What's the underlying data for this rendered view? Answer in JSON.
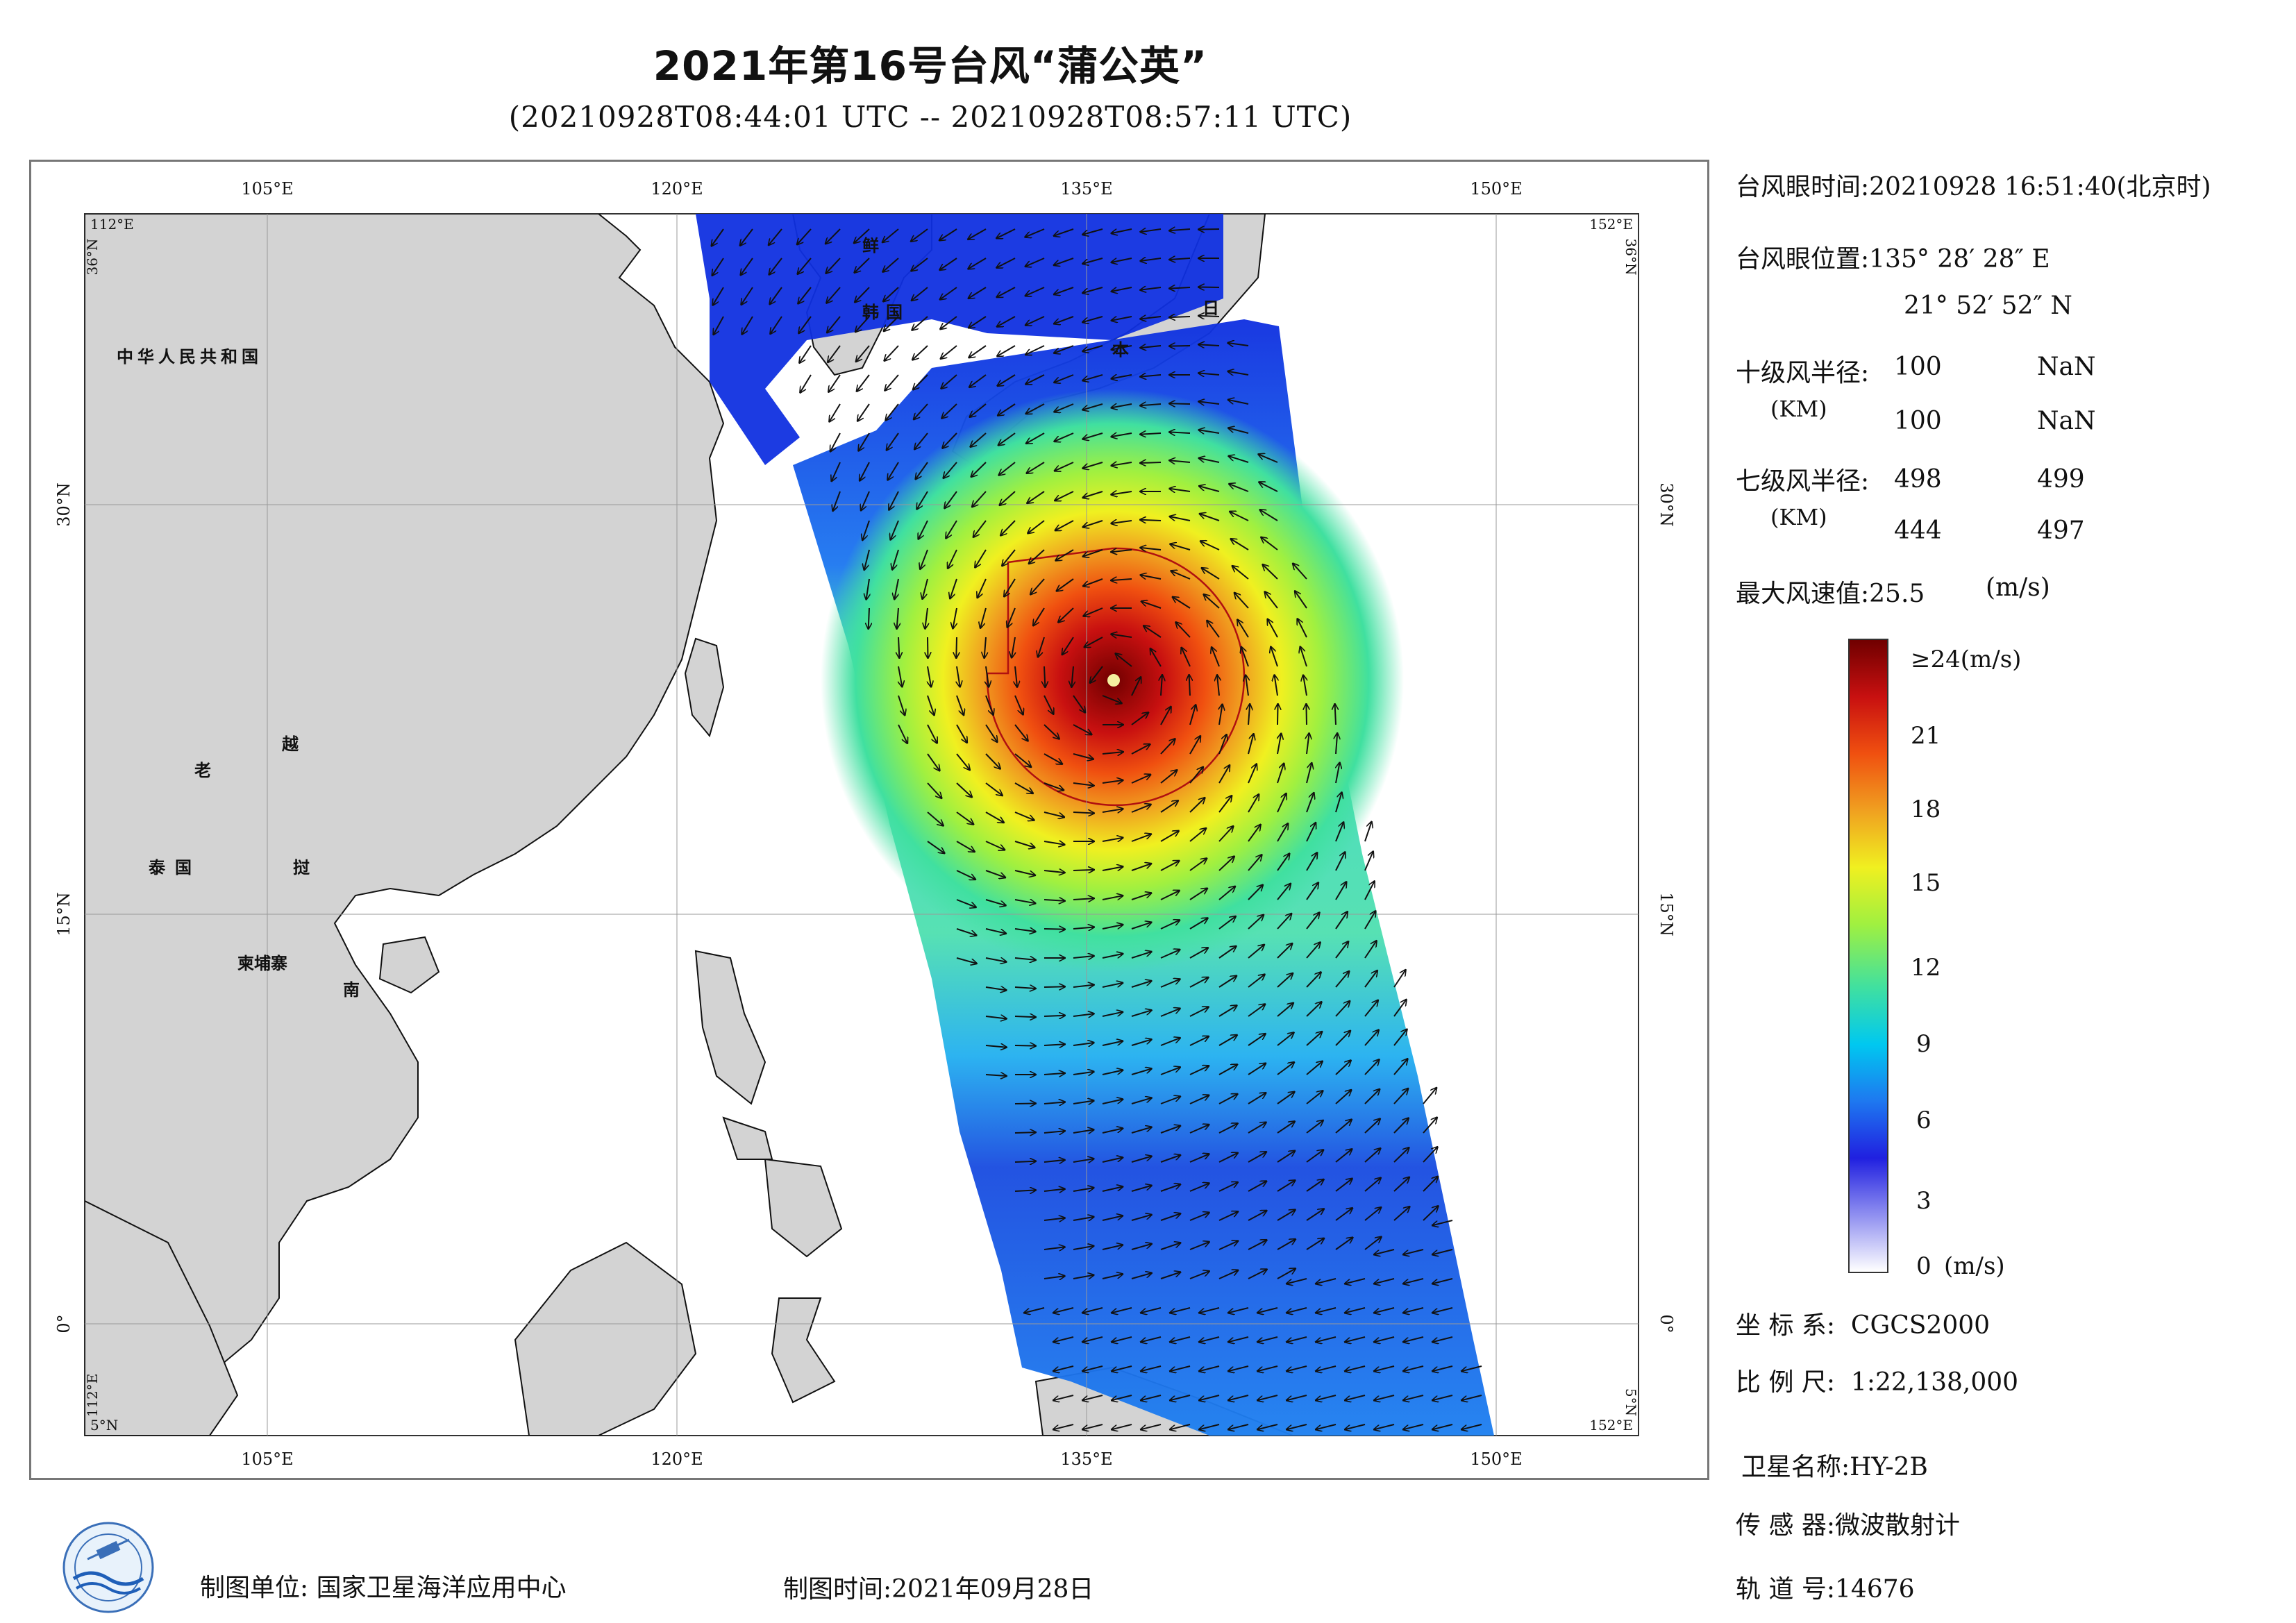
{
  "title": "2021年第16号台风“蒲公英”",
  "subtitle": "(20210928T08:44:01 UTC -- 20210928T08:57:11 UTC)",
  "map": {
    "lon_ticks": [
      "105°E",
      "120°E",
      "135°E",
      "150°E"
    ],
    "lat_ticks": [
      "30°N",
      "15°N",
      "0°"
    ],
    "corners": {
      "top_left_lon": "112°E",
      "top_left_lat": "36°N",
      "top_right_lon": "152°E",
      "top_right_lat": "36°N",
      "bottom_left_lon": "112°E",
      "bottom_left_lat": "5°N",
      "bottom_right_lat": "5°N",
      "bottom_right_lon": "152°E"
    },
    "labels": {
      "china": "中华人民共和国",
      "korea_n": "鲜",
      "korea_s": "韩国",
      "japan_ri": "日",
      "japan_ben": "本",
      "laos": "老",
      "vietnam_yue": "越",
      "vietnam_nan": "南",
      "thailand": "泰国",
      "cambodia": "柬埔寨",
      "vietnam_dian": "挝"
    },
    "land_color": "#d3d3d3",
    "wind_field_colors": [
      "#0a1ad8",
      "#1e78f0",
      "#24c8e8",
      "#6ee86e",
      "#e8e830",
      "#f08020",
      "#d41414",
      "#7a0000"
    ]
  },
  "info": {
    "eye_time_label": "台风眼时间:",
    "eye_time_value": "20210928 16:51:40(北京时)",
    "eye_pos_label": "台风眼位置:",
    "eye_lon": "135° 28′ 28″ E",
    "eye_lat": "21° 52′ 52″ N",
    "r10_label": "十级风半径:",
    "r10_unit": "(KM)",
    "r10_values": [
      "100",
      "NaN",
      "100",
      "NaN"
    ],
    "r7_label": "七级风半径:",
    "r7_unit": "(KM)",
    "r7_values": [
      "498",
      "499",
      "444",
      "497"
    ],
    "max_wind_label": "最大风速值:",
    "max_wind_value": "25.5",
    "max_wind_unit": "(m/s)"
  },
  "colorbar": {
    "top_label": "≥24(m/s)",
    "ticks": [
      "21",
      "18",
      "15",
      "12",
      "9",
      "6",
      "3",
      "0"
    ],
    "unit": "(m/s)",
    "stops": [
      "#ffffff",
      "#8f8ff0",
      "#2020e0",
      "#1e78f0",
      "#00c8f0",
      "#40e0a0",
      "#a0f040",
      "#f0f020",
      "#f0a020",
      "#f05010",
      "#c81010",
      "#700000"
    ]
  },
  "meta": {
    "coord_label": "坐 标 系:",
    "coord_value": "CGCS2000",
    "scale_label": "比 例 尺:",
    "scale_value": "1:22,138,000",
    "sat_label": "卫星名称:",
    "sat_value": "HY-2B",
    "sensor_label": "传 感 器:",
    "sensor_value": "微波散射计",
    "orbit_label": "轨 道 号:",
    "orbit_value": "14676"
  },
  "footer": {
    "org_label": "制图单位:",
    "org_value": "国家卫星海洋应用中心",
    "date_label": "制图时间:",
    "date_value": "2021年09月28日"
  }
}
